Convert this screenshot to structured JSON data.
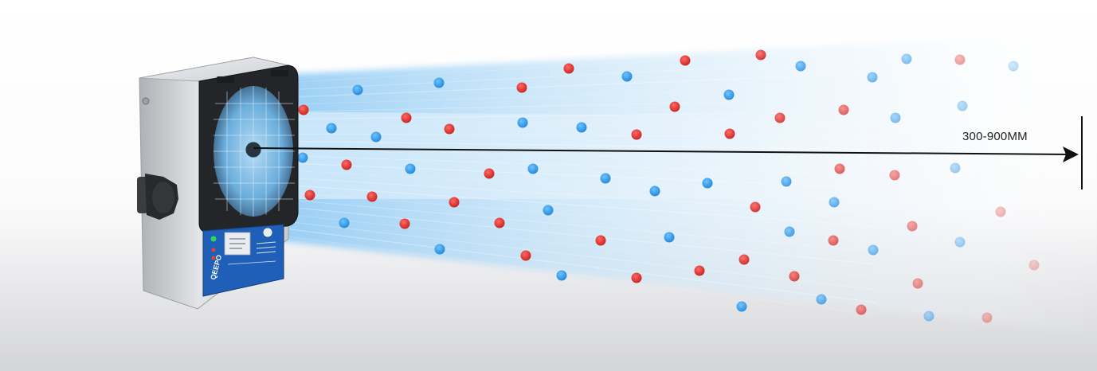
{
  "distance": {
    "label": "300-900MM"
  },
  "device": {
    "brand": "QEEPO"
  },
  "colors": {
    "positive_ion": "#e5312f",
    "negative_ion": "#3aa3ec",
    "air_flow": "#9fd3f5",
    "device_body": "#d8dadd",
    "device_front": "#2b2d31",
    "control_panel": "#1f5fb8",
    "arrow": "#111111"
  },
  "ions": {
    "red_count_visible": 34,
    "blue_count_visible": 37
  }
}
